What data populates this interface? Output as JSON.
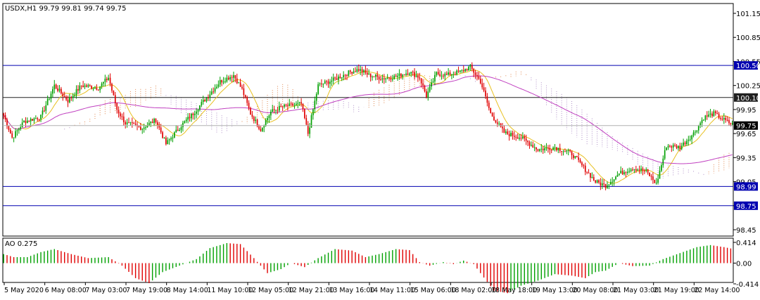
{
  "header": {
    "symbol_line": "USDX,H1  99.79 99.81 99.74 99.75",
    "ao_label": "AO 0.275"
  },
  "chart_data": {
    "type": "candlestick",
    "symbol": "USDX",
    "timeframe": "H1",
    "ohlc_last": {
      "open": 99.79,
      "high": 99.81,
      "low": 99.74,
      "close": 99.75
    },
    "price_axis": {
      "min": 98.4,
      "max": 101.25,
      "ticks": [
        101.15,
        100.85,
        100.55,
        100.25,
        99.95,
        99.65,
        99.35,
        99.05,
        98.75,
        98.45
      ],
      "tick_labels": [
        "101.15",
        "100.85",
        "100.55",
        "100.25",
        "99.95",
        "99.65",
        "99.35",
        "99.05",
        "98.75",
        "98.45"
      ]
    },
    "time_axis_labels": [
      "5 May 2020",
      "6 May 08:00",
      "7 May 03:00",
      "7 May 19:00",
      "8 May 14:00",
      "11 May 10:00",
      "12 May 05:00",
      "12 May 21:00",
      "13 May 16:00",
      "14 May 11:00",
      "15 May 06:00",
      "18 May 02:00",
      "18 May 18:00",
      "19 May 13:00",
      "20 May 08:00",
      "21 May 03:00",
      "21 May 19:00",
      "22 May 14:00"
    ],
    "horizontal_levels": [
      {
        "value": 100.5,
        "label": "100.50",
        "color": "#0000b0"
      },
      {
        "value": 100.1,
        "label": "100.10",
        "color": "#202020"
      },
      {
        "value": 98.99,
        "label": "98.99",
        "color": "#0000b0"
      },
      {
        "value": 98.75,
        "label": "98.75",
        "color": "#0000b0"
      }
    ],
    "current_price": {
      "value": 99.75,
      "label": "99.75"
    },
    "close_path": [
      [
        0,
        99.88
      ],
      [
        5,
        99.6
      ],
      [
        12,
        99.8
      ],
      [
        22,
        99.86
      ],
      [
        30,
        100.25
      ],
      [
        38,
        100.06
      ],
      [
        46,
        100.25
      ],
      [
        56,
        100.22
      ],
      [
        62,
        100.35
      ],
      [
        67,
        99.95
      ],
      [
        72,
        99.78
      ],
      [
        82,
        99.72
      ],
      [
        90,
        99.82
      ],
      [
        96,
        99.52
      ],
      [
        105,
        99.75
      ],
      [
        112,
        99.9
      ],
      [
        120,
        100.1
      ],
      [
        128,
        100.3
      ],
      [
        136,
        100.38
      ],
      [
        141,
        100.2
      ],
      [
        146,
        99.9
      ],
      [
        152,
        99.7
      ],
      [
        158,
        99.92
      ],
      [
        164,
        99.98
      ],
      [
        170,
        100.0
      ],
      [
        176,
        100.02
      ],
      [
        180,
        99.65
      ],
      [
        186,
        100.25
      ],
      [
        195,
        100.32
      ],
      [
        205,
        100.42
      ],
      [
        210,
        100.45
      ],
      [
        216,
        100.38
      ],
      [
        224,
        100.34
      ],
      [
        232,
        100.36
      ],
      [
        240,
        100.42
      ],
      [
        246,
        100.35
      ],
      [
        250,
        100.12
      ],
      [
        256,
        100.4
      ],
      [
        262,
        100.38
      ],
      [
        270,
        100.42
      ],
      [
        276,
        100.48
      ],
      [
        282,
        100.3
      ],
      [
        288,
        99.9
      ],
      [
        296,
        99.66
      ],
      [
        306,
        99.6
      ],
      [
        316,
        99.45
      ],
      [
        326,
        99.48
      ],
      [
        336,
        99.4
      ],
      [
        344,
        99.2
      ],
      [
        350,
        99.05
      ],
      [
        356,
        99.0
      ],
      [
        364,
        99.15
      ],
      [
        372,
        99.22
      ],
      [
        380,
        99.18
      ],
      [
        386,
        99.02
      ],
      [
        392,
        99.5
      ],
      [
        400,
        99.48
      ],
      [
        408,
        99.65
      ],
      [
        414,
        99.85
      ],
      [
        420,
        99.9
      ],
      [
        426,
        99.82
      ],
      [
        432,
        99.75
      ]
    ],
    "indicators": [
      {
        "name": "Ichimoku Cloud",
        "colors": [
          "#e08850",
          "#b090c8"
        ]
      },
      {
        "name": "Moving Average (fast)",
        "color": "#e8c020"
      },
      {
        "name": "Moving Average (slow)",
        "color": "#c040c0"
      }
    ],
    "ao": {
      "name": "AO",
      "current": 0.275,
      "axis_ticks": [
        0.414,
        0.0,
        -0.414
      ],
      "axis_labels": [
        "0.414",
        "0.00",
        "-0.414"
      ],
      "rising_color": "#00a000",
      "falling_color": "#e00000",
      "points": [
        [
          0,
          0.18
        ],
        [
          6,
          0.12
        ],
        [
          14,
          0.12
        ],
        [
          22,
          0.22
        ],
        [
          30,
          0.28
        ],
        [
          40,
          0.18
        ],
        [
          50,
          0.1
        ],
        [
          62,
          0.12
        ],
        [
          70,
          -0.05
        ],
        [
          78,
          -0.3
        ],
        [
          86,
          -0.4
        ],
        [
          94,
          -0.18
        ],
        [
          104,
          -0.05
        ],
        [
          114,
          0.08
        ],
        [
          122,
          0.3
        ],
        [
          132,
          0.4
        ],
        [
          140,
          0.38
        ],
        [
          148,
          0.1
        ],
        [
          156,
          -0.2
        ],
        [
          164,
          -0.12
        ],
        [
          170,
          0.0
        ],
        [
          178,
          -0.08
        ],
        [
          186,
          0.1
        ],
        [
          196,
          0.28
        ],
        [
          206,
          0.25
        ],
        [
          214,
          0.12
        ],
        [
          222,
          0.18
        ],
        [
          232,
          0.28
        ],
        [
          240,
          0.26
        ],
        [
          246,
          0.02
        ],
        [
          252,
          -0.05
        ],
        [
          260,
          0.02
        ],
        [
          266,
          -0.02
        ],
        [
          272,
          0.05
        ],
        [
          278,
          -0.02
        ],
        [
          282,
          -0.2
        ],
        [
          290,
          -0.55
        ],
        [
          298,
          -0.6
        ],
        [
          306,
          -0.45
        ],
        [
          316,
          -0.35
        ],
        [
          326,
          -0.22
        ],
        [
          336,
          -0.25
        ],
        [
          344,
          -0.3
        ],
        [
          350,
          -0.18
        ],
        [
          356,
          -0.15
        ],
        [
          364,
          0.0
        ],
        [
          372,
          -0.06
        ],
        [
          382,
          -0.05
        ],
        [
          390,
          0.08
        ],
        [
          400,
          0.2
        ],
        [
          410,
          0.32
        ],
        [
          418,
          0.36
        ],
        [
          426,
          0.32
        ],
        [
          432,
          0.28
        ]
      ]
    }
  }
}
